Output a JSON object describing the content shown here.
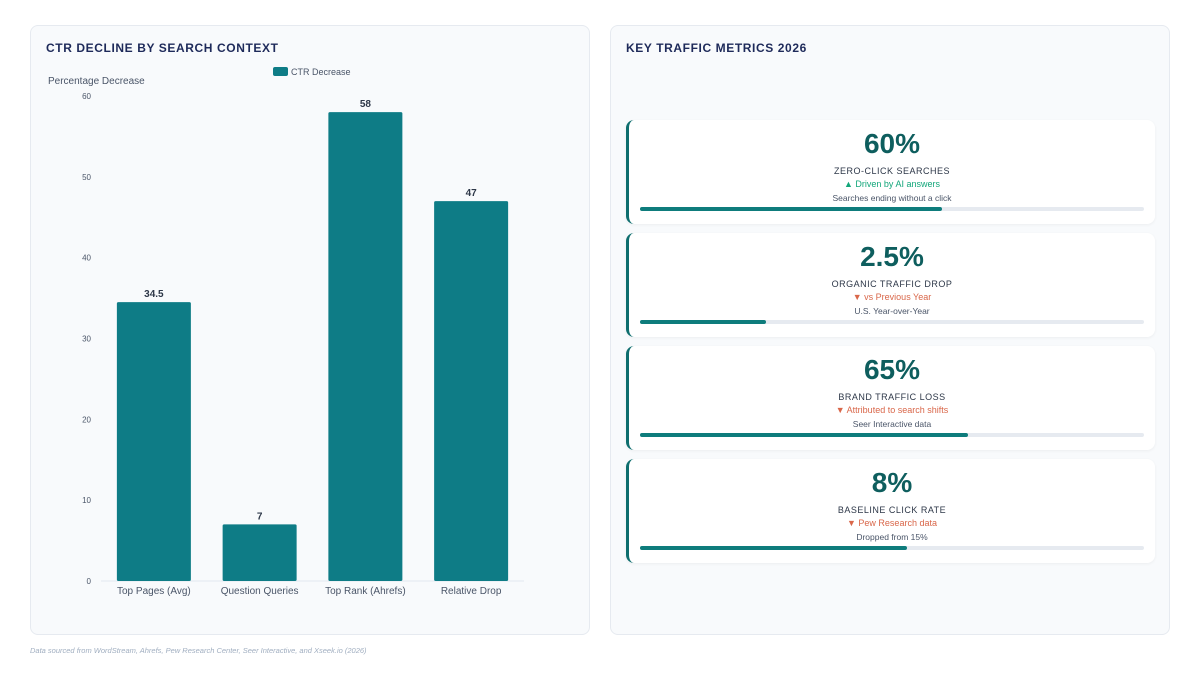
{
  "left_panel": {
    "title": "CTR DECLINE BY SEARCH CONTEXT"
  },
  "right_panel": {
    "title": "KEY TRAFFIC METRICS 2026"
  },
  "chart_data": {
    "type": "bar",
    "title": "CTR DECLINE BY SEARCH CONTEXT",
    "ylabel": "Percentage Decrease",
    "xlabel": "",
    "categories": [
      "Top Pages (Avg)",
      "Question Queries",
      "Top Rank (Ahrefs)",
      "Relative Drop"
    ],
    "series": [
      {
        "name": "CTR Decrease",
        "values": [
          34.5,
          7,
          58,
          47
        ],
        "color": "#0e7c86"
      }
    ],
    "ylim": [
      0,
      60
    ],
    "yticks": [
      0,
      10,
      20,
      30,
      40,
      50,
      60
    ],
    "grid": false,
    "legend": "top-center",
    "data_labels": true
  },
  "metrics": [
    {
      "value": "60%",
      "label": "ZERO-CLICK SEARCHES",
      "trend": "▲ Driven by AI answers",
      "trend_dir": "up",
      "desc": "Searches ending without a click",
      "progress": 0.6
    },
    {
      "value": "2.5%",
      "label": "ORGANIC TRAFFIC DROP",
      "trend": "▼ vs Previous Year",
      "trend_dir": "down",
      "desc": "U.S. Year-over-Year",
      "progress": 0.25
    },
    {
      "value": "65%",
      "label": "BRAND TRAFFIC LOSS",
      "trend": "▼ Attributed to search shifts",
      "trend_dir": "down",
      "desc": "Seer Interactive data",
      "progress": 0.65
    },
    {
      "value": "8%",
      "label": "BASELINE CLICK RATE",
      "trend": "▼ Pew Research data",
      "trend_dir": "down",
      "desc": "Dropped from 15%",
      "progress": 0.53
    }
  ],
  "footnote": "Data sourced from WordStream, Ahrefs, Pew Research Center, Seer Interactive, and Xseek.io (2026)"
}
